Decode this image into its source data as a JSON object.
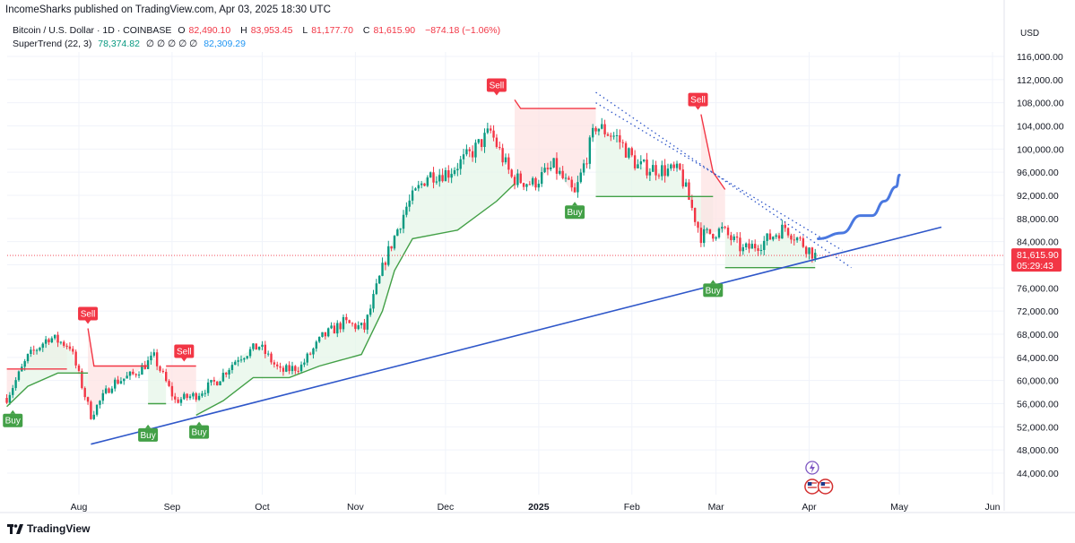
{
  "header": {
    "published": "IncomeSharks published on TradingView.com, Apr 03, 2025 18:30 UTC"
  },
  "legend": {
    "symbol": "Bitcoin / U.S. Dollar · 1D · COINBASE",
    "o_label": "O",
    "o_value": "82,490.10",
    "h_label": "H",
    "h_value": "83,953.45",
    "l_label": "L",
    "l_value": "81,177.70",
    "c_label": "C",
    "c_value": "81,615.90",
    "change": "−874.18 (−1.06%)",
    "indicator": "SuperTrend (22, 3)",
    "ind_up": "78,374.82",
    "ind_zeros": "∅ ∅ ∅ ∅ ∅",
    "ind_down": "82,309.29"
  },
  "price_axis": {
    "currency": "USD",
    "last_price": "81,615.90",
    "countdown": "05:29:43"
  },
  "brand": {
    "name": "TradingView"
  },
  "colors": {
    "up": "#089981",
    "down": "#f23645",
    "trend_up": "#43a047",
    "trend_down": "#f23645",
    "trendline": "#2f57c9",
    "projection": "#4a78e0",
    "fill_up": "#e5f5e8",
    "fill_down": "#fde3e3"
  },
  "chart_data": {
    "type": "candlestick",
    "y_unit": "USD",
    "ylim": [
      40000,
      120000
    ],
    "y_ticks": [
      44000,
      48000,
      52000,
      56000,
      60000,
      64000,
      68000,
      72000,
      76000,
      80000,
      84000,
      88000,
      92000,
      96000,
      100000,
      104000,
      108000,
      112000,
      116000
    ],
    "y_tick_labels": [
      "44,000.00",
      "48,000.00",
      "52,000.00",
      "56,000.00",
      "60,000.00",
      "64,000.00",
      "68,000.00",
      "72,000.00",
      "76,000.00",
      "80,000.00",
      "84,000.00",
      "88,000.00",
      "92,000.00",
      "96,000.00",
      "100,000.00",
      "104,000.00",
      "108,000.00",
      "112,000.00",
      "116,000.00"
    ],
    "x_range": [
      "2024-07-08",
      "2025-06-05"
    ],
    "x_labels": [
      {
        "date": "2024-08-01",
        "text": "Aug",
        "bold": false
      },
      {
        "date": "2024-09-01",
        "text": "Sep",
        "bold": false
      },
      {
        "date": "2024-10-01",
        "text": "Oct",
        "bold": false
      },
      {
        "date": "2024-11-01",
        "text": "Nov",
        "bold": false
      },
      {
        "date": "2024-12-01",
        "text": "Dec",
        "bold": false
      },
      {
        "date": "2025-01-01",
        "text": "2025",
        "bold": true
      },
      {
        "date": "2025-02-01",
        "text": "Feb",
        "bold": false
      },
      {
        "date": "2025-03-01",
        "text": "Mar",
        "bold": false
      },
      {
        "date": "2025-04-01",
        "text": "Apr",
        "bold": false
      },
      {
        "date": "2025-05-01",
        "text": "May",
        "bold": false
      },
      {
        "date": "2025-06-01",
        "text": "Jun",
        "bold": false
      }
    ],
    "price_path": [
      [
        "2024-07-08",
        57000
      ],
      [
        "2024-07-15",
        64000
      ],
      [
        "2024-07-22",
        67500
      ],
      [
        "2024-07-29",
        66000
      ],
      [
        "2024-08-05",
        54000
      ],
      [
        "2024-08-12",
        59500
      ],
      [
        "2024-08-19",
        61000
      ],
      [
        "2024-08-26",
        64000
      ],
      [
        "2024-09-02",
        56500
      ],
      [
        "2024-09-09",
        57500
      ],
      [
        "2024-09-16",
        60000
      ],
      [
        "2024-09-23",
        64000
      ],
      [
        "2024-09-30",
        66000
      ],
      [
        "2024-10-07",
        61500
      ],
      [
        "2024-10-14",
        62500
      ],
      [
        "2024-10-21",
        67500
      ],
      [
        "2024-10-28",
        70000
      ],
      [
        "2024-11-04",
        69000
      ],
      [
        "2024-11-11",
        81000
      ],
      [
        "2024-11-18",
        90000
      ],
      [
        "2024-11-25",
        95500
      ],
      [
        "2024-12-02",
        96000
      ],
      [
        "2024-12-09",
        99000
      ],
      [
        "2024-12-16",
        103000
      ],
      [
        "2024-12-23",
        95000
      ],
      [
        "2024-12-30",
        94000
      ],
      [
        "2025-01-06",
        97000
      ],
      [
        "2025-01-13",
        92000
      ],
      [
        "2025-01-20",
        104000
      ],
      [
        "2025-01-27",
        102000
      ],
      [
        "2025-02-03",
        97000
      ],
      [
        "2025-02-10",
        96500
      ],
      [
        "2025-02-17",
        96000
      ],
      [
        "2025-02-24",
        85000
      ],
      [
        "2025-03-03",
        86000
      ],
      [
        "2025-03-10",
        82500
      ],
      [
        "2025-03-17",
        84000
      ],
      [
        "2025-03-24",
        86500
      ],
      [
        "2025-04-03",
        81615.9
      ]
    ],
    "supertrend_segments": [
      {
        "trend": "down",
        "points": [
          [
            "2024-07-08",
            62000
          ],
          [
            "2024-07-28",
            62000
          ]
        ]
      },
      {
        "trend": "up",
        "points": [
          [
            "2024-07-08",
            55500
          ],
          [
            "2024-07-15",
            59000
          ],
          [
            "2024-07-25",
            61300
          ],
          [
            "2024-08-04",
            61300
          ]
        ]
      },
      {
        "trend": "down",
        "points": [
          [
            "2024-08-04",
            69000
          ],
          [
            "2024-08-06",
            62500
          ],
          [
            "2024-08-24",
            62500
          ]
        ]
      },
      {
        "trend": "up",
        "points": [
          [
            "2024-08-24",
            56000
          ],
          [
            "2024-08-30",
            56000
          ]
        ]
      },
      {
        "trend": "down",
        "points": [
          [
            "2024-08-30",
            62500
          ],
          [
            "2024-09-09",
            62500
          ]
        ]
      },
      {
        "trend": "up",
        "points": [
          [
            "2024-09-09",
            54000
          ],
          [
            "2024-09-18",
            56500
          ],
          [
            "2024-09-28",
            60500
          ],
          [
            "2024-10-10",
            60500
          ],
          [
            "2024-10-20",
            62500
          ],
          [
            "2024-11-03",
            64500
          ],
          [
            "2024-11-10",
            72000
          ],
          [
            "2024-11-14",
            79000
          ],
          [
            "2024-11-20",
            84500
          ],
          [
            "2024-12-05",
            86000
          ],
          [
            "2024-12-18",
            91000
          ],
          [
            "2024-12-24",
            94000
          ]
        ]
      },
      {
        "trend": "down",
        "points": [
          [
            "2024-12-24",
            108500
          ],
          [
            "2024-12-26",
            107000
          ],
          [
            "2025-01-20",
            107000
          ]
        ]
      },
      {
        "trend": "up",
        "points": [
          [
            "2025-01-20",
            91800
          ],
          [
            "2025-02-28",
            91800
          ]
        ]
      },
      {
        "trend": "down",
        "points": [
          [
            "2025-02-24",
            106000
          ],
          [
            "2025-02-28",
            96000
          ],
          [
            "2025-03-04",
            93000
          ]
        ]
      },
      {
        "trend": "up",
        "points": [
          [
            "2025-03-04",
            79500
          ],
          [
            "2025-04-03",
            79500
          ]
        ]
      }
    ],
    "signals": [
      {
        "type": "buy",
        "label": "Buy",
        "date": "2024-07-10",
        "price": 55500
      },
      {
        "type": "sell",
        "label": "Sell",
        "date": "2024-08-04",
        "price": 69000
      },
      {
        "type": "buy",
        "label": "Buy",
        "date": "2024-08-24",
        "price": 53000
      },
      {
        "type": "sell",
        "label": "Sell",
        "date": "2024-09-05",
        "price": 62500
      },
      {
        "type": "buy",
        "label": "Buy",
        "date": "2024-09-10",
        "price": 53500
      },
      {
        "type": "sell",
        "label": "Sell",
        "date": "2024-12-18",
        "price": 108500
      },
      {
        "type": "buy",
        "label": "Buy",
        "date": "2025-01-13",
        "price": 91500
      },
      {
        "type": "sell",
        "label": "Sell",
        "date": "2025-02-23",
        "price": 106000
      },
      {
        "type": "buy",
        "label": "Buy",
        "date": "2025-02-28",
        "price": 78000
      }
    ],
    "ascending_trendline": {
      "from": [
        "2024-08-05",
        49000
      ],
      "to": [
        "2025-05-15",
        86500
      ]
    },
    "descending_channel": [
      {
        "from": [
          "2025-01-20",
          109800
        ],
        "to": [
          "2025-04-15",
          79500
        ]
      },
      {
        "from": [
          "2025-01-20",
          108000
        ],
        "to": [
          "2025-04-12",
          82500
        ]
      }
    ],
    "projection_path": [
      [
        "2025-04-04",
        84500
      ],
      [
        "2025-04-12",
        85500
      ],
      [
        "2025-04-18",
        88500
      ],
      [
        "2025-04-22",
        88500
      ],
      [
        "2025-04-26",
        91000
      ],
      [
        "2025-04-30",
        93500
      ],
      [
        "2025-05-01",
        95500
      ]
    ],
    "events": [
      {
        "date": "2025-04-02",
        "icon": "lightning-event-icon"
      },
      {
        "date": "2025-04-02",
        "icon": "us-flag-event-icon"
      },
      {
        "date": "2025-04-04",
        "icon": "us-flag-event-icon"
      }
    ]
  }
}
